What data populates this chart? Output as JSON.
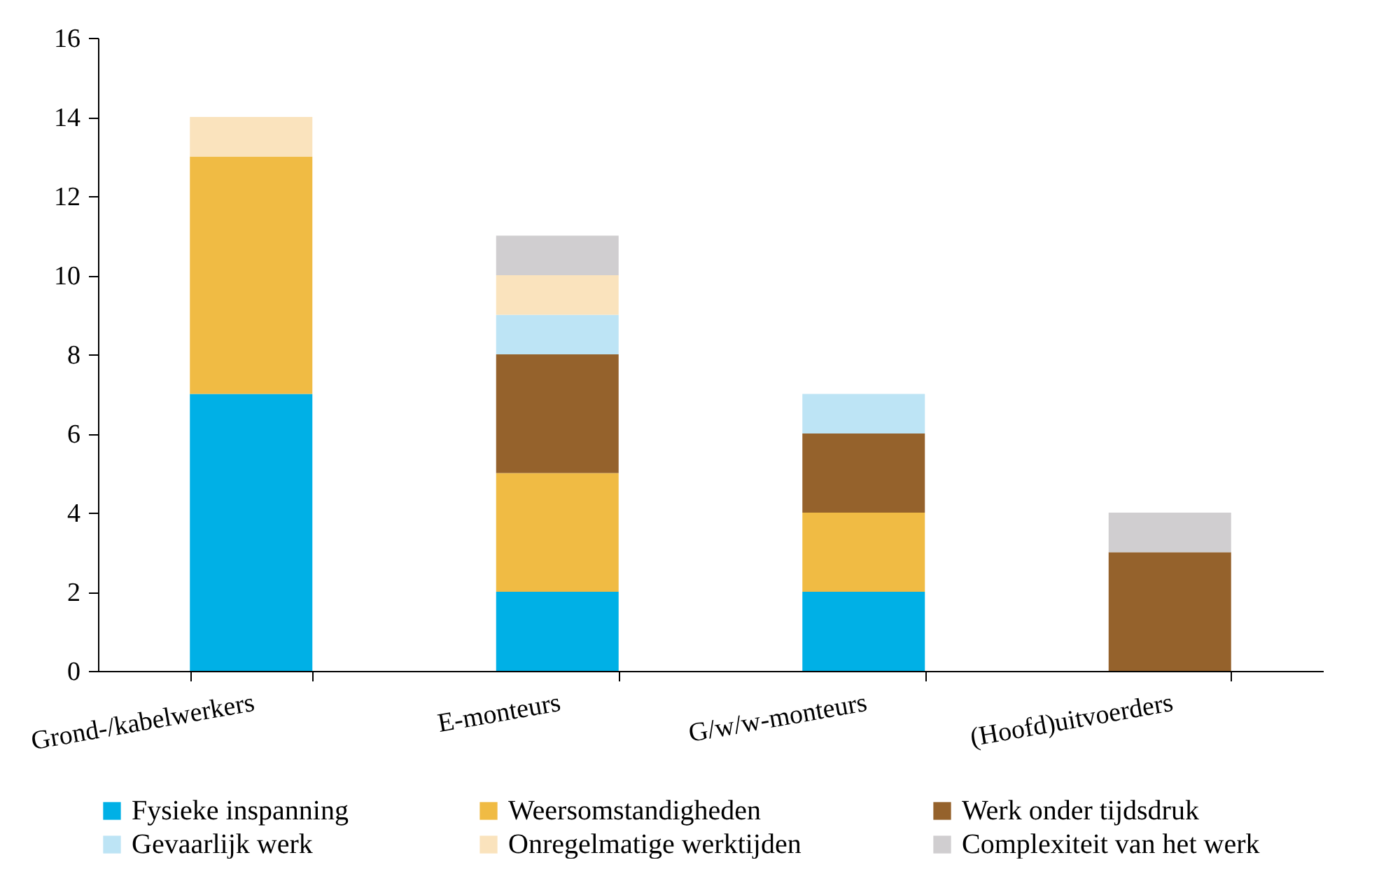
{
  "chart_data": {
    "type": "bar",
    "stacked": true,
    "categories": [
      "Grond-/kabelwerkers",
      "E-monteurs",
      "G/w/w-monteurs",
      "(Hoofd)uitvoerders"
    ],
    "series": [
      {
        "name": "Fysieke inspanning",
        "color": "#00b0e6",
        "values": [
          7,
          2,
          2,
          0
        ]
      },
      {
        "name": "Weersomstandigheden",
        "color": "#f0bb44",
        "values": [
          6,
          3,
          2,
          0
        ]
      },
      {
        "name": "Werk onder tijdsdruk",
        "color": "#95622c",
        "values": [
          0,
          3,
          2,
          3
        ]
      },
      {
        "name": "Gevaarlijk werk",
        "color": "#bde4f5",
        "values": [
          0,
          1,
          1,
          0
        ]
      },
      {
        "name": "Onregelmatige werktijden",
        "color": "#fae3bd",
        "values": [
          1,
          1,
          0,
          0
        ]
      },
      {
        "name": "Complexiteit van het werk",
        "color": "#d0ced0",
        "values": [
          0,
          1,
          0,
          1
        ]
      }
    ],
    "ylim": [
      0,
      16
    ],
    "yticks": [
      0,
      2,
      4,
      6,
      8,
      10,
      12,
      14,
      16
    ],
    "grid": false,
    "legend": "bottom"
  }
}
